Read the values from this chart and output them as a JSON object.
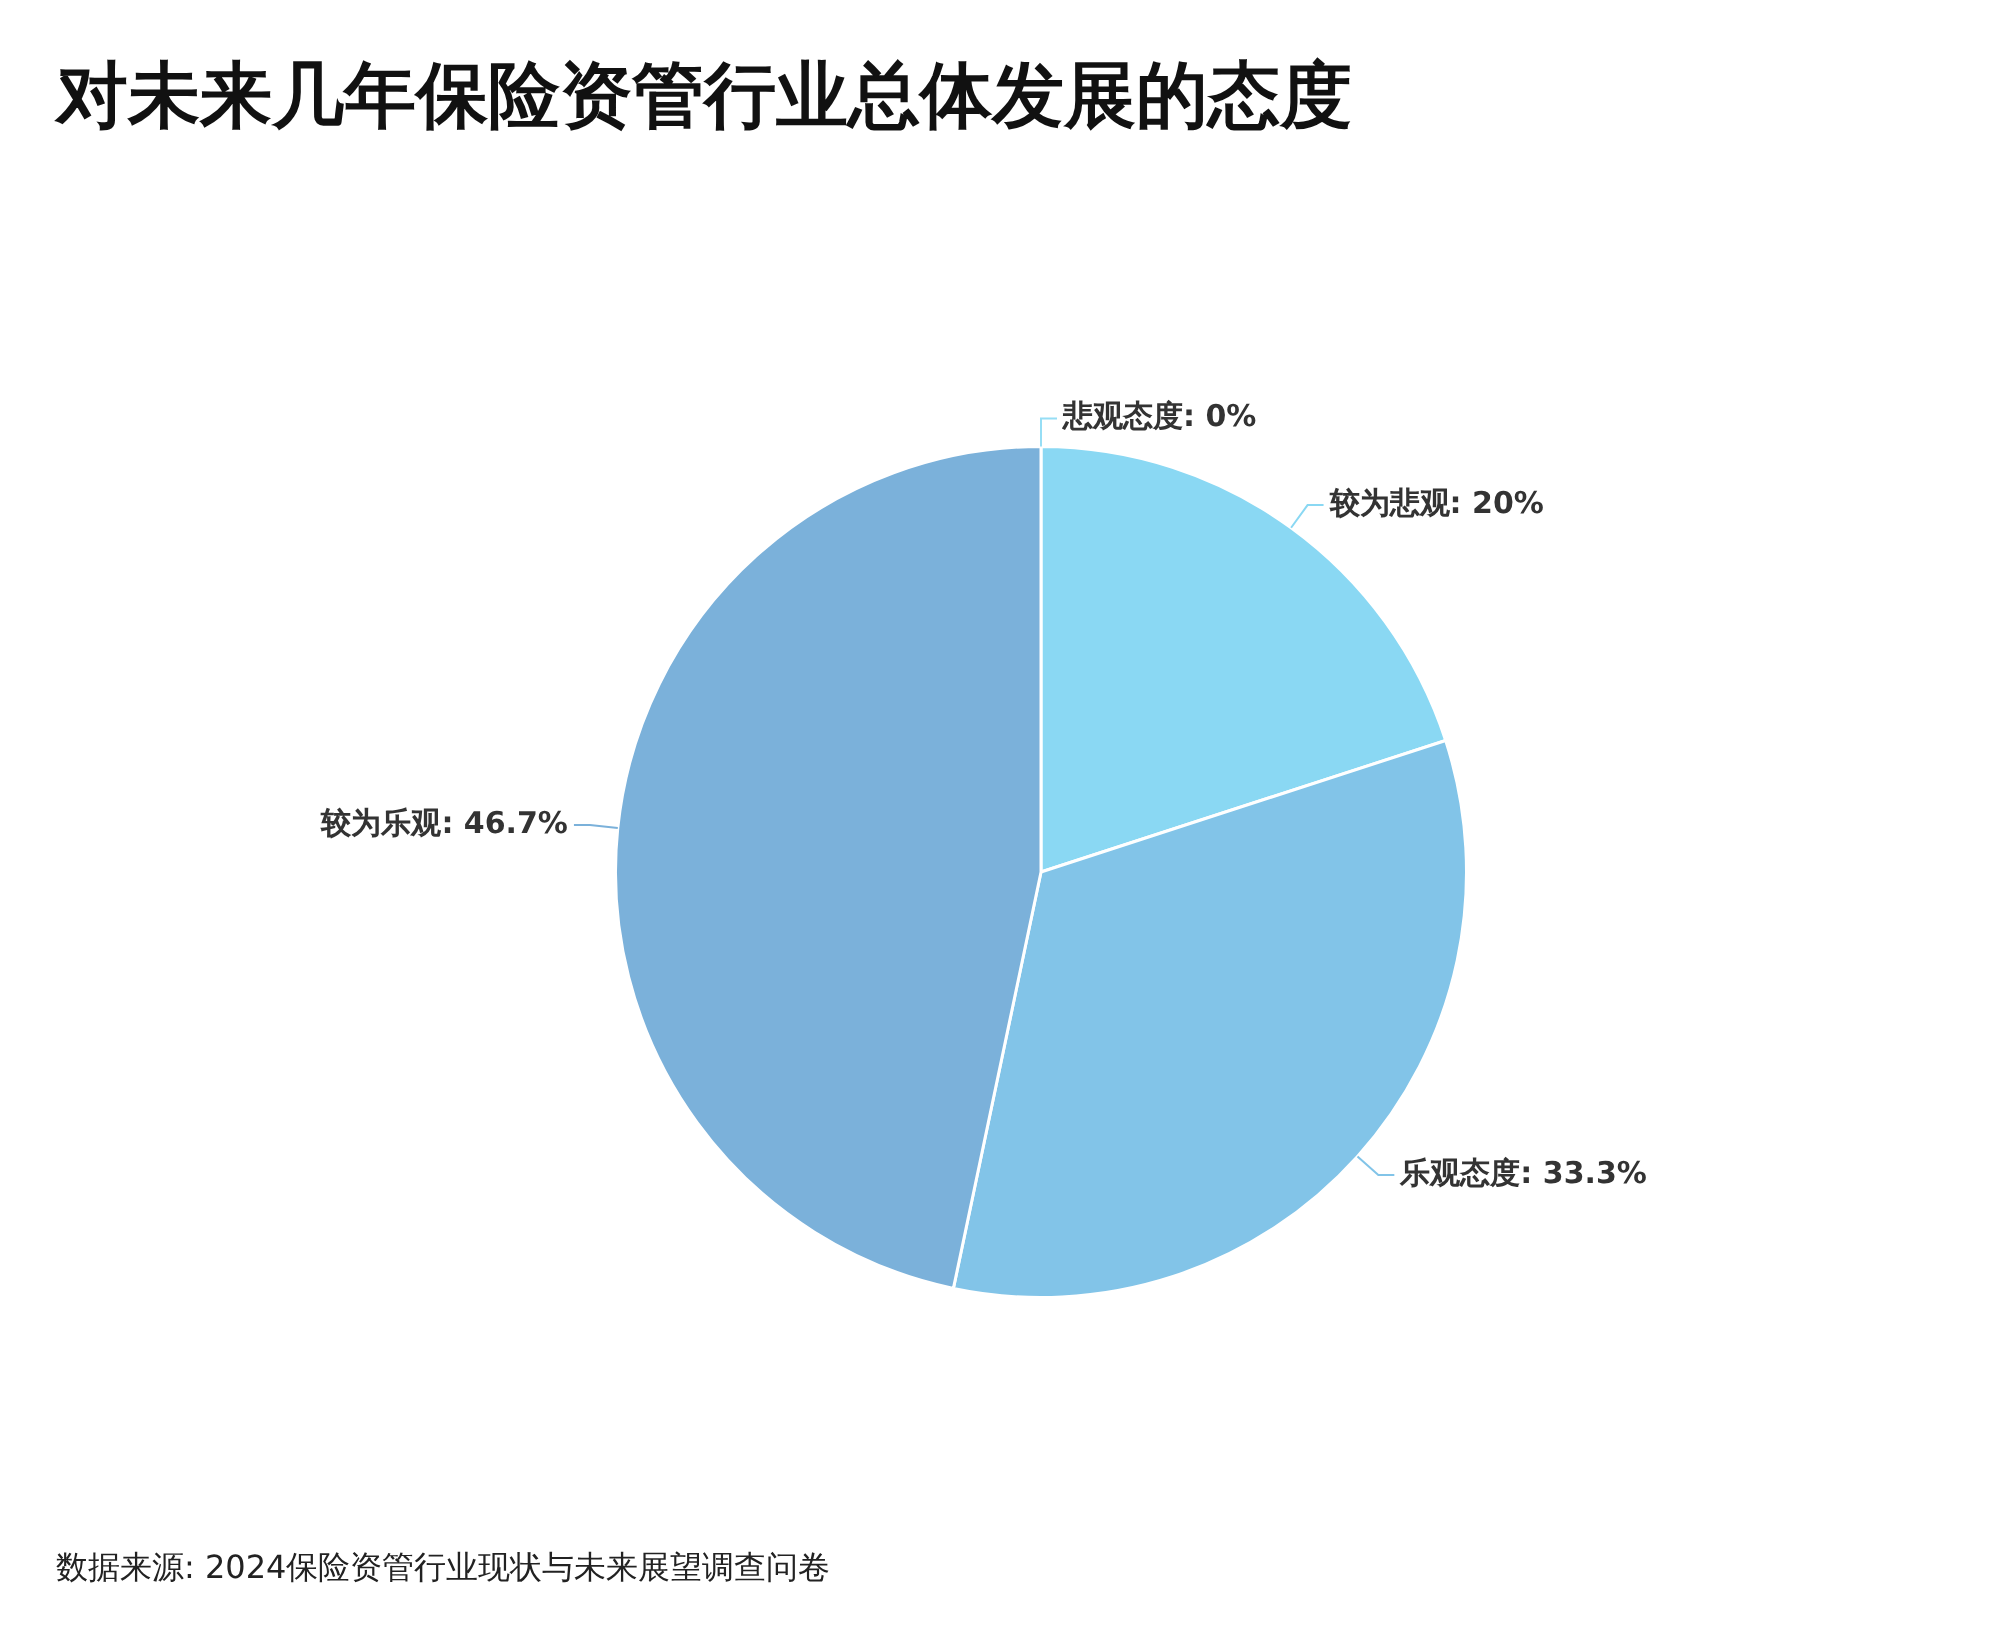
{
  "chart_data": {
    "type": "pie",
    "title": "对未来几年保险资管行业总体发展的态度",
    "categories": [
      "悲观态度",
      "较为悲观",
      "乐观态度",
      "较为乐观"
    ],
    "values": [
      0,
      20,
      33.3,
      46.7
    ],
    "colors": [
      "#96def5",
      "#8ad8f3",
      "#82c4e8",
      "#7bb1da"
    ],
    "value_labels": [
      "0%",
      "20%",
      "33.3%",
      "46.7%"
    ],
    "annotations": [
      "数据来源: 2024保险资管行业现状与未来展望调查问卷"
    ]
  }
}
